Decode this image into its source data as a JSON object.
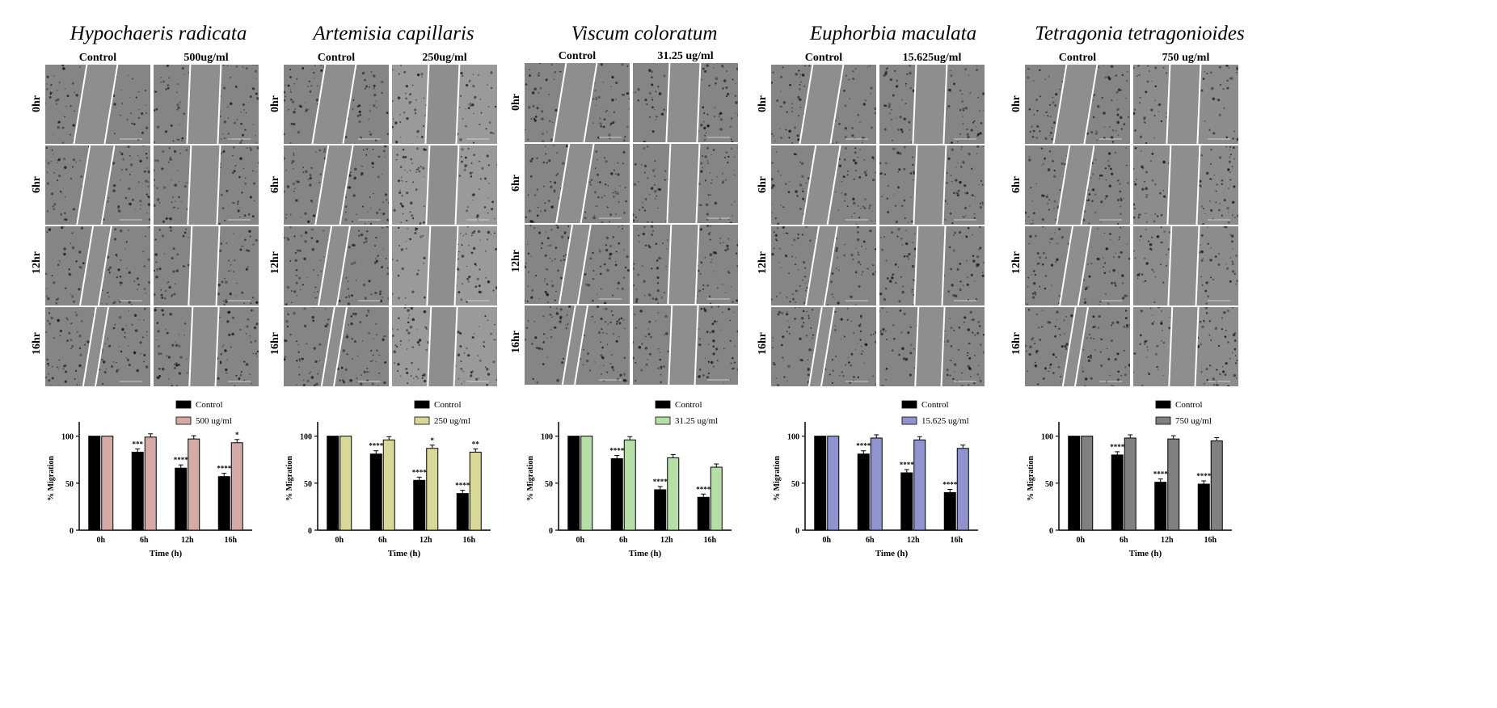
{
  "panels": [
    {
      "species": "Hypochaeris radicata",
      "col_labels": [
        "Control",
        "500ug/ml"
      ],
      "row_labels": [
        "0hr",
        "6hr",
        "12hr",
        "16hr"
      ],
      "treat_color": "#d4a9a6",
      "chart_data": {
        "type": "bar",
        "categories": [
          "0h",
          "6h",
          "12h",
          "16h"
        ],
        "series": [
          {
            "name": "Control",
            "values": [
              100,
              83,
              66,
              57
            ],
            "color": "#000000"
          },
          {
            "name": "500 ug/ml",
            "values": [
              100,
              99,
              97,
              93
            ],
            "color": "#d4a9a6"
          }
        ],
        "significance": {
          "Control": [
            "",
            "***",
            "****",
            "****"
          ],
          "500 ug/ml": [
            "",
            "",
            "",
            "*"
          ]
        },
        "xlabel": "Time (h)",
        "ylabel": "% Migration",
        "yticks": [
          "0",
          "50",
          "100"
        ],
        "ylim": [
          0,
          110
        ]
      }
    },
    {
      "species": "Artemisia capillaris",
      "col_labels": [
        "Control",
        "250ug/ml"
      ],
      "row_labels": [
        "0hr",
        "6hr",
        "12hr",
        "16hr"
      ],
      "treat_color": "#d8d898",
      "chart_data": {
        "type": "bar",
        "categories": [
          "0h",
          "6h",
          "12h",
          "16h"
        ],
        "series": [
          {
            "name": "Control",
            "values": [
              100,
              81,
              53,
              39
            ],
            "color": "#000000"
          },
          {
            "name": "250 ug/ml",
            "values": [
              100,
              96,
              87,
              83
            ],
            "color": "#d8d898"
          }
        ],
        "significance": {
          "Control": [
            "",
            "****",
            "****",
            "****"
          ],
          "250 ug/ml": [
            "",
            "",
            "*",
            "**"
          ]
        },
        "xlabel": "Time (h)",
        "ylabel": "% Migration",
        "yticks": [
          "0",
          "50",
          "100"
        ],
        "ylim": [
          0,
          110
        ]
      }
    },
    {
      "species": "Viscum coloratum",
      "col_labels": [
        "Control",
        "31.25 ug/ml"
      ],
      "row_labels": [
        "0hr",
        "6hr",
        "12hr",
        "16hr"
      ],
      "treat_color": "#b6dfa8",
      "chart_data": {
        "type": "bar",
        "categories": [
          "0h",
          "6h",
          "12h",
          "16h"
        ],
        "series": [
          {
            "name": "Control",
            "values": [
              100,
              76,
              43,
              35
            ],
            "color": "#000000"
          },
          {
            "name": "31.25 ug/ml",
            "values": [
              100,
              96,
              77,
              67
            ],
            "color": "#b6dfa8"
          }
        ],
        "significance": {
          "Control": [
            "",
            "****",
            "****",
            "****"
          ],
          "31.25 ug/ml": [
            "",
            "",
            "***",
            "****"
          ]
        },
        "xlabel": "Time (h)",
        "ylabel": "% Migration",
        "yticks": [
          "0",
          "50",
          "100"
        ],
        "ylim": [
          0,
          110
        ]
      }
    },
    {
      "species": "Euphorbia maculata",
      "col_labels": [
        "Control",
        "15.625ug/ml"
      ],
      "row_labels": [
        "0hr",
        "6hr",
        "12hr",
        "16hr"
      ],
      "treat_color": "#8f93d0",
      "chart_data": {
        "type": "bar",
        "categories": [
          "0h",
          "6h",
          "12h",
          "16h"
        ],
        "series": [
          {
            "name": "Control",
            "values": [
              100,
              81,
              61,
              40
            ],
            "color": "#000000"
          },
          {
            "name": "15.625 ug/ml",
            "values": [
              100,
              98,
              96,
              87
            ],
            "color": "#8f93d0"
          }
        ],
        "significance": {
          "Control": [
            "",
            "****",
            "****",
            "****"
          ],
          "15.625 ug/ml": [
            "",
            "",
            "*",
            "***"
          ]
        },
        "xlabel": "Time (h)",
        "ylabel": "% Migration",
        "yticks": [
          "0",
          "50",
          "100"
        ],
        "ylim": [
          0,
          110
        ]
      }
    },
    {
      "species": "Tetragonia tetragonioides",
      "col_labels": [
        "Control",
        "750 ug/ml"
      ],
      "row_labels": [
        "0hr",
        "6hr",
        "12hr",
        "16hr"
      ],
      "treat_color": "#808080",
      "chart_data": {
        "type": "bar",
        "categories": [
          "0h",
          "6h",
          "12h",
          "16h"
        ],
        "series": [
          {
            "name": "Control",
            "values": [
              100,
              80,
              51,
              49
            ],
            "color": "#000000"
          },
          {
            "name": "750 ug/ml",
            "values": [
              100,
              98,
              97,
              95
            ],
            "color": "#808080"
          }
        ],
        "significance": {
          "Control": [
            "",
            "****",
            "****",
            "****"
          ],
          "750 ug/ml": [
            "",
            "",
            "",
            ""
          ]
        },
        "xlabel": "Time (h)",
        "ylabel": "% Migration",
        "yticks": [
          "0",
          "50",
          "100"
        ],
        "ylim": [
          0,
          110
        ]
      }
    }
  ]
}
